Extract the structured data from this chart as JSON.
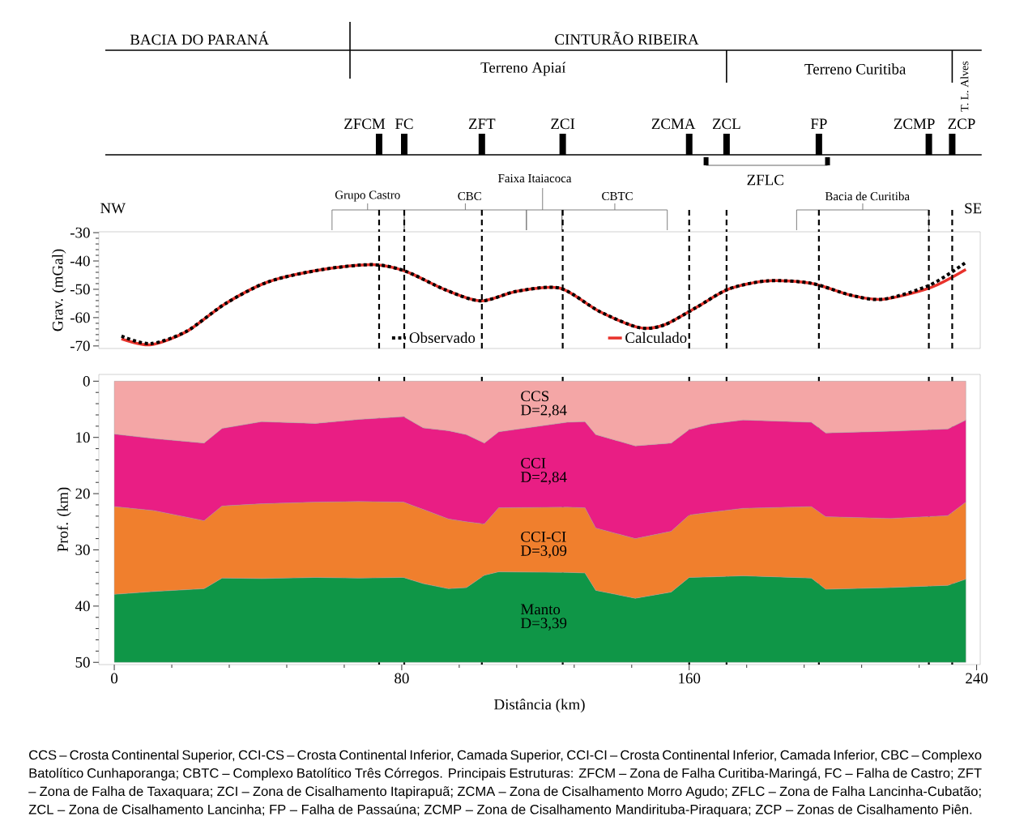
{
  "chart_data": [
    {
      "type": "line",
      "ylabel": "Grav. (mGal)",
      "xlim": [
        -4.3,
        241
      ],
      "ylim": [
        -70.9,
        -29.7
      ],
      "yticks": [
        -30,
        -40,
        -50,
        -60,
        -70
      ],
      "tick_labels": "y",
      "legend": "bottom",
      "marker": "none",
      "series": [
        {
          "name": "Observado",
          "color": "#000000",
          "line_style": "dotted",
          "x": [
            2,
            10,
            20,
            31,
            43,
            58,
            72,
            81,
            92,
            102,
            112,
            124,
            135,
            146,
            153,
            162,
            171,
            182,
            194,
            205,
            214,
            227,
            237
          ],
          "values": [
            -66.5,
            -69.2,
            -64.9,
            -55,
            -47.3,
            -43,
            -41.3,
            -43.6,
            -50.1,
            -54.1,
            -50.7,
            -49.6,
            -57.8,
            -63.5,
            -62.6,
            -56.4,
            -49.9,
            -47,
            -47.9,
            -52.1,
            -53.5,
            -48.5,
            -40.5
          ]
        },
        {
          "name": "Calculado",
          "color": "#e8322b",
          "line_style": "solid",
          "x": [
            2,
            10,
            20,
            31,
            43,
            58,
            72,
            81,
            92,
            102,
            112,
            124,
            135,
            146,
            153,
            162,
            171,
            182,
            194,
            205,
            214,
            227,
            237
          ],
          "values": [
            -67.5,
            -69.6,
            -65,
            -55,
            -47.3,
            -43,
            -41.3,
            -43.6,
            -50.1,
            -54.1,
            -50.7,
            -49.6,
            -57.8,
            -63.5,
            -62.6,
            -56.4,
            -49.9,
            -47,
            -47.9,
            -52.1,
            -53.5,
            -49.5,
            -43
          ]
        }
      ],
      "ref_lines": [
        {
          "axis": "x",
          "value": 73.7,
          "line_style": "dashed"
        },
        {
          "axis": "x",
          "value": 80.7,
          "line_style": "dashed"
        },
        {
          "axis": "x",
          "value": 102.3,
          "line_style": "dashed"
        },
        {
          "axis": "x",
          "value": 124.8,
          "line_style": "dashed"
        },
        {
          "axis": "x",
          "value": 160,
          "line_style": "dashed"
        },
        {
          "axis": "x",
          "value": 170.4,
          "line_style": "dashed"
        },
        {
          "axis": "x",
          "value": 196.1,
          "line_style": "dashed"
        },
        {
          "axis": "x",
          "value": 226.7,
          "line_style": "dashed"
        },
        {
          "axis": "x",
          "value": 233.2,
          "line_style": "dashed"
        }
      ],
      "annotations": [
        "BACIA DO PARANÁ",
        "CINTURÃO RIBEIRA",
        "Terreno Apiaí",
        "Terreno Curitiba",
        "T. L. Alves",
        "ZFLC",
        "Faixa Itaiacoca",
        "Grupo Castro",
        "CBC",
        "CBTC",
        "Bacia de Curitiba",
        "NW",
        "SE",
        "ZFCM",
        "FC",
        "ZFT",
        "ZCI",
        "ZCMA",
        "ZCL",
        "FP",
        "ZCMP",
        "ZCP"
      ]
    },
    {
      "type": "area",
      "stacked": true,
      "xlabel": "Distância (km)",
      "ylabel": "Prof. (km)",
      "xlim": [
        -4.3,
        241
      ],
      "ylim": [
        50.4,
        -1.2
      ],
      "xticks": [
        0,
        80,
        160,
        240
      ],
      "yticks": [
        0,
        10,
        20,
        30,
        40,
        50
      ],
      "x": [
        0,
        11,
        25,
        30,
        41,
        56,
        68,
        80.5,
        86,
        93,
        98,
        103,
        107,
        126,
        131,
        134,
        145,
        155,
        160,
        166,
        175,
        194,
        198,
        216,
        232,
        237
      ],
      "series": [
        {
          "name": "CCS",
          "color": "#f4a6a6",
          "values": [
            9.4,
            10.2,
            11.0,
            8.4,
            7.2,
            7.5,
            6.8,
            6.3,
            8.3,
            8.8,
            9.5,
            11.0,
            9.0,
            7.3,
            7.2,
            9.5,
            11.5,
            11.0,
            8.6,
            7.6,
            6.9,
            7.3,
            9.2,
            8.9,
            8.5,
            6.9
          ]
        },
        {
          "name": "CCI",
          "color": "#e91e84",
          "values": [
            12.9,
            12.8,
            13.8,
            13.8,
            14.6,
            14.0,
            14.6,
            15.2,
            14.5,
            15.7,
            15.5,
            14.4,
            13.5,
            15.1,
            15.3,
            16.6,
            16.5,
            15.7,
            15.2,
            15.7,
            15.7,
            15.0,
            14.9,
            15.5,
            15.4,
            14.6
          ]
        },
        {
          "name": "CCI-CI",
          "color": "#f07f2d",
          "values": [
            15.6,
            14.4,
            12.1,
            12.8,
            13.3,
            13.4,
            13.6,
            13.4,
            13.2,
            12.4,
            11.7,
            9.1,
            11.4,
            11.6,
            11.6,
            11.1,
            10.6,
            10.8,
            11.1,
            11.5,
            12.0,
            12.7,
            12.9,
            12.3,
            12.4,
            13.7
          ]
        },
        {
          "name": "Manto",
          "color": "#0f9647",
          "values": [
            12.1,
            12.6,
            13.1,
            15.0,
            14.9,
            15.1,
            15.0,
            15.1,
            14.0,
            13.1,
            13.3,
            15.5,
            16.1,
            16.0,
            15.9,
            12.8,
            11.4,
            12.5,
            15.1,
            15.2,
            15.4,
            15.0,
            13.0,
            13.3,
            13.7,
            14.8
          ]
        }
      ],
      "ref_lines": [
        {
          "axis": "x",
          "value": 73.7,
          "line_style": "dashed"
        },
        {
          "axis": "x",
          "value": 80.7,
          "line_style": "dashed"
        },
        {
          "axis": "x",
          "value": 102.3,
          "line_style": "dashed"
        },
        {
          "axis": "x",
          "value": 124.8,
          "line_style": "dashed"
        },
        {
          "axis": "x",
          "value": 160,
          "line_style": "dashed"
        },
        {
          "axis": "x",
          "value": 170.4,
          "line_style": "dashed"
        },
        {
          "axis": "x",
          "value": 196.1,
          "line_style": "dashed"
        },
        {
          "axis": "x",
          "value": 226.7,
          "line_style": "dashed"
        },
        {
          "axis": "x",
          "value": 233.2,
          "line_style": "dashed"
        }
      ],
      "annotations": [
        "D=2,84",
        "D=2,84",
        "D=3,09",
        "D=3,39",
        "CCS – Crosta Continental Superior, CCI-CS – Crosta Continental Inferior, Camada Superior, CCI-CI – Crosta Continental Inferior, Camada Inferior, CBC – Complexo Batolítico Cunhaporanga; CBTC – Complexo Batolítico Três Córregos. Principais Estruturas: ZFCM – Zona de Falha Curitiba-Maringá, FC – Falha de Castro; ZFT – Zona de Falha de Taxaquara; ZCI – Zona de Cisalhamento Itapirapuã; ZCMA – Zona de Cisalhamento Morro Agudo; ZFLC – Zona de Falha Lancinha-Cubatão; ZCL – Zona de Cisalhamento Lancinha; FP – Falha de Passaúna; ZCMP – Zona de Cisalhamento Mandirituba-Piraquara; ZCP – Zonas de Cisalhamento Piên."
      ]
    }
  ]
}
